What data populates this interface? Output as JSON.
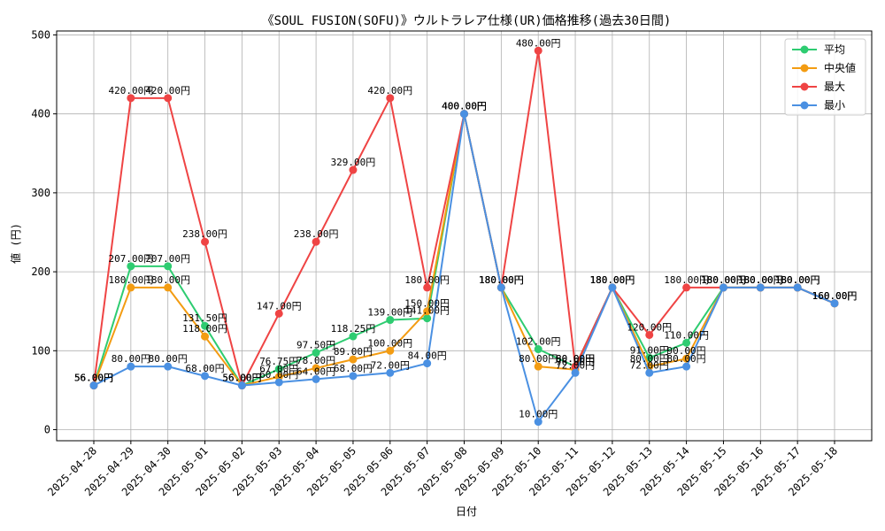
{
  "chart_data": {
    "type": "line",
    "title": "《SOUL FUSION(SOFU)》ウルトラレア仕様(UR)価格推移(過去30日間)",
    "xlabel": "日付",
    "ylabel": "値 (円)",
    "ylim": [
      -14,
      505
    ],
    "yticks": [
      0,
      100,
      200,
      300,
      400,
      500
    ],
    "grid": true,
    "legend_position": "top-right",
    "categories": [
      "2025-04-28",
      "2025-04-29",
      "2025-04-30",
      "2025-05-01",
      "2025-05-02",
      "2025-05-03",
      "2025-05-04",
      "2025-05-05",
      "2025-05-06",
      "2025-05-07",
      "2025-05-08",
      "2025-05-09",
      "2025-05-10",
      "2025-05-11",
      "2025-05-12",
      "2025-05-13",
      "2025-05-14",
      "2025-05-15",
      "2025-05-16",
      "2025-05-17",
      "2025-05-18"
    ],
    "value_suffix": "円",
    "series": [
      {
        "name": "平均",
        "color": "#2ecc71",
        "values": [
          56,
          207,
          207,
          131.5,
          56,
          76.75,
          97.5,
          118.25,
          139,
          141,
          400,
          180,
          102,
          80,
          180,
          91,
          110,
          180,
          180,
          180,
          160
        ]
      },
      {
        "name": "中央値",
        "color": "#f39c12",
        "values": [
          56,
          180,
          180,
          118,
          56,
          67,
          78,
          89,
          100,
          150,
          400,
          180,
          80,
          76,
          180,
          80,
          90,
          180,
          180,
          180,
          160
        ]
      },
      {
        "name": "最大",
        "color": "#ef4444",
        "values": [
          56,
          420,
          420,
          238,
          56,
          147,
          238,
          329,
          420,
          180,
          400,
          180,
          480,
          80,
          180,
          120,
          180,
          180,
          180,
          180,
          160
        ]
      },
      {
        "name": "最小",
        "color": "#4a90e2",
        "values": [
          56,
          80,
          80,
          68,
          56,
          60,
          64,
          68,
          72,
          84,
          400,
          180,
          10,
          72,
          180,
          72,
          80,
          180,
          180,
          180,
          160
        ]
      }
    ]
  }
}
